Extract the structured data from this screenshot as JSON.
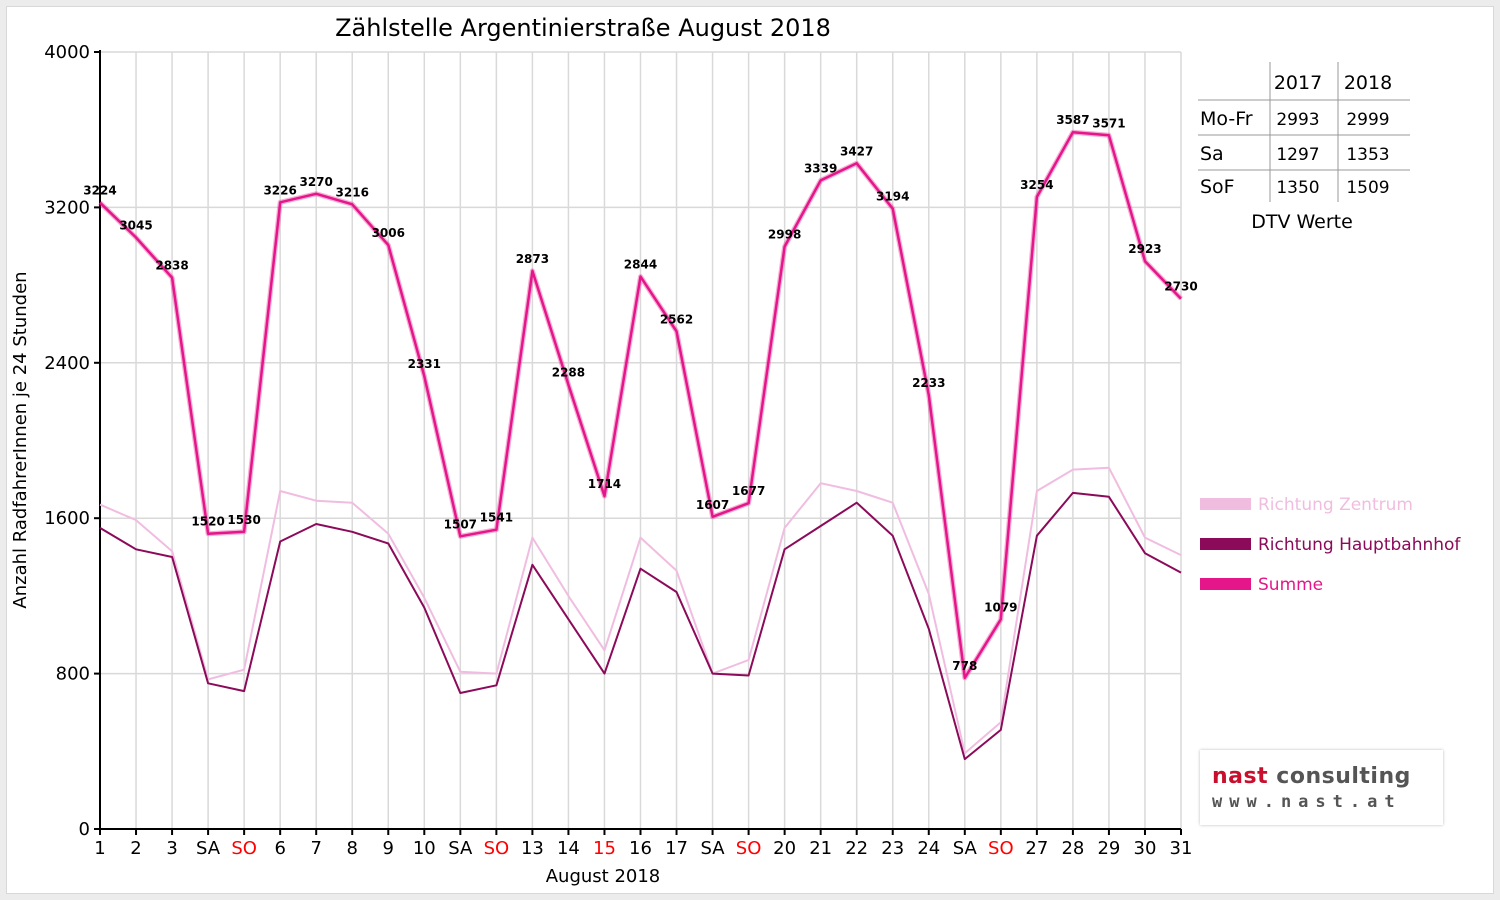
{
  "chart_data": {
    "type": "line",
    "title": "Zählstelle Argentinierstraße August 2018",
    "xlabel": "August 2018",
    "ylabel": "Anzahl RadfahrerInnen je 24 Stunden",
    "ylim": [
      0,
      4000
    ],
    "yticks": [
      "0",
      "800",
      "1600",
      "2400",
      "3200",
      "4000"
    ],
    "categories": [
      "1",
      "2",
      "3",
      "SA",
      "SO",
      "6",
      "7",
      "8",
      "9",
      "10",
      "SA",
      "SO",
      "13",
      "14",
      "15",
      "16",
      "17",
      "SA",
      "SO",
      "20",
      "21",
      "22",
      "23",
      "24",
      "SA",
      "SO",
      "27",
      "28",
      "29",
      "30",
      "31"
    ],
    "red_categories": [
      4,
      11,
      14,
      18,
      25
    ],
    "grid": true,
    "legend_position": "right",
    "series": [
      {
        "name": "Richtung Zentrum",
        "color": "#f0bde0",
        "values": [
          1670,
          1590,
          1430,
          770,
          820,
          1740,
          1690,
          1680,
          1520,
          1190,
          810,
          800,
          1500,
          1200,
          920,
          1500,
          1330,
          800,
          870,
          1550,
          1780,
          1740,
          1680,
          1210,
          390,
          550,
          1740,
          1850,
          1860,
          1500,
          1410
        ]
      },
      {
        "name": "Richtung Hauptbahnhof",
        "color": "#8b0a5a",
        "values": [
          1550,
          1440,
          1400,
          750,
          710,
          1480,
          1570,
          1530,
          1470,
          1140,
          700,
          740,
          1360,
          1080,
          800,
          1340,
          1220,
          800,
          790,
          1440,
          1560,
          1680,
          1510,
          1030,
          360,
          510,
          1510,
          1730,
          1710,
          1420,
          1320
        ]
      },
      {
        "name": "Summe",
        "color": "#e5168a",
        "values": [
          3224,
          3045,
          2838,
          1520,
          1530,
          3226,
          3270,
          3216,
          3006,
          2331,
          1507,
          1541,
          2873,
          2288,
          1714,
          2844,
          2562,
          1607,
          1677,
          2998,
          3339,
          3427,
          3194,
          2233,
          778,
          1079,
          3254,
          3587,
          3571,
          2923,
          2730
        ],
        "labels": [
          "3224",
          "3045",
          "2838",
          "1520",
          "1530",
          "3226",
          "3270",
          "3216",
          "3006",
          "2331",
          "1507",
          "1541",
          "2873",
          "2288",
          "1714",
          "2844",
          "2562",
          "1607",
          "1677",
          "2998",
          "3339",
          "3427",
          "3194",
          "2233",
          "778",
          "1079",
          "3254",
          "3587",
          "3571",
          "2923",
          "2730"
        ]
      }
    ]
  },
  "dtv_table": {
    "headers": [
      "",
      "2017",
      "2018"
    ],
    "rows": [
      {
        "label": "Mo-Fr",
        "v2017": "2993",
        "v2018": "2999"
      },
      {
        "label": "Sa",
        "v2017": "1297",
        "v2018": "1353"
      },
      {
        "label": "SoF",
        "v2017": "1350",
        "v2018": "1509"
      }
    ],
    "caption": "DTV Werte"
  },
  "logo": {
    "brand_red": "nast",
    "brand_grey": "consulting",
    "url": "www.nast.at"
  }
}
